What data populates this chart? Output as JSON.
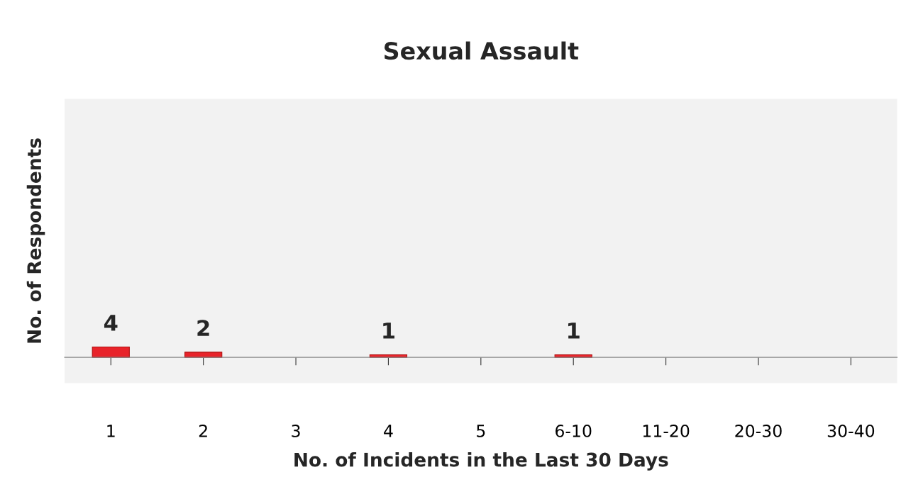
{
  "chart_data": {
    "type": "bar",
    "title": "Sexual Assault",
    "xlabel": "No. of Incidents in the Last 30 Days",
    "ylabel": "No. of Respondents",
    "categories": [
      "1",
      "2",
      "3",
      "4",
      "5",
      "6-10",
      "11-20",
      "20-30",
      "30-40"
    ],
    "values": [
      4,
      2,
      null,
      1,
      null,
      1,
      null,
      null,
      null
    ],
    "color": "#e8232a",
    "data_labels": true,
    "ylim": [
      -10,
      100
    ],
    "tick_labels": "x",
    "grid": false,
    "legend": false
  }
}
